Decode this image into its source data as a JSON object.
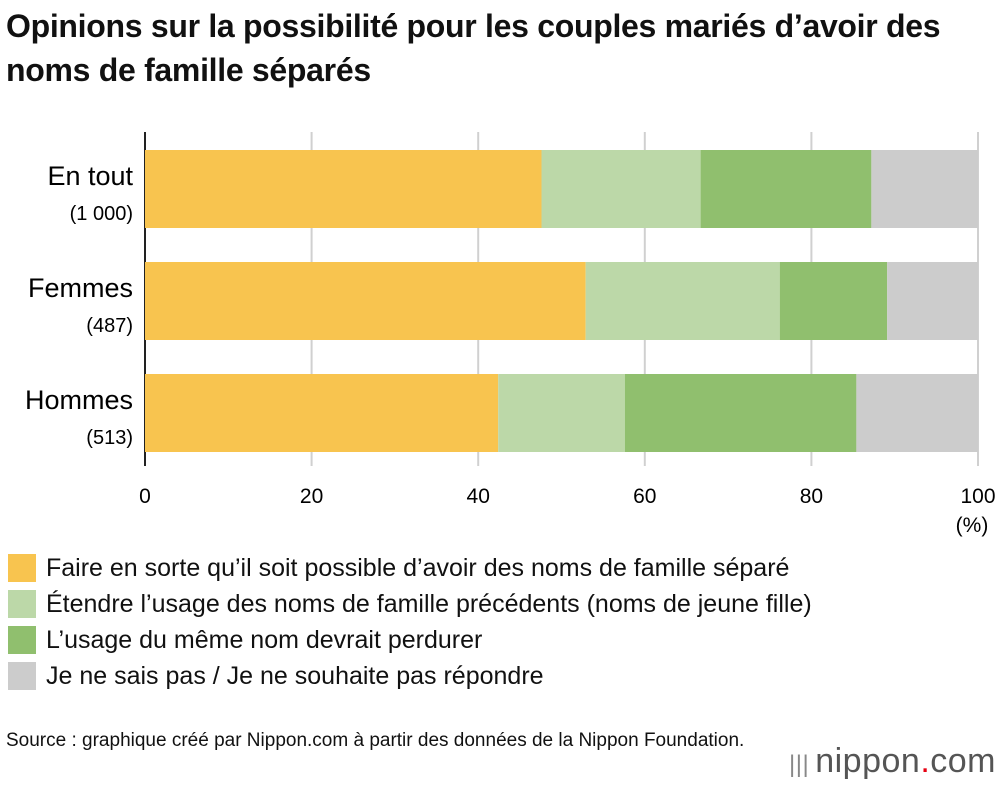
{
  "chart_data": {
    "type": "bar",
    "orientation": "horizontal",
    "stacked": true,
    "title": "Opinions sur la possibilité pour les couples mariés d’avoir des noms de famille séparés",
    "categories": [
      {
        "label": "En tout",
        "n": "(1 000)"
      },
      {
        "label": "Femmes",
        "n": "(487)"
      },
      {
        "label": "Hommes",
        "n": "(513)"
      }
    ],
    "series": [
      {
        "name": "Faire en sorte qu’il soit possible d’avoir des noms de famille séparé",
        "color": "#f8c44f",
        "values": [
          47.6,
          52.9,
          42.4
        ]
      },
      {
        "name": "Étendre l’usage des noms de famille précédents (noms de jeune fille)",
        "color": "#bcd8a8",
        "values": [
          19.1,
          23.3,
          15.2
        ]
      },
      {
        "name": "L’usage du même nom devrait perdurer",
        "color": "#90bf6e",
        "values": [
          20.5,
          12.9,
          27.8
        ]
      },
      {
        "name": "Je ne sais pas / Je ne souhaite pas répondre",
        "color": "#cccccc",
        "values": [
          12.8,
          10.9,
          14.6
        ]
      }
    ],
    "xlim": [
      0,
      100
    ],
    "xticks": [
      "0",
      "20",
      "40",
      "60",
      "80",
      "100"
    ],
    "xunit": "(%)",
    "grid": true,
    "legend": "bottom"
  },
  "source": "Source : graphique créé par Nippon.com à partir des données de la Nippon Foundation.",
  "logo": {
    "name": "nippon",
    "dot": ".",
    "tld": "com"
  }
}
